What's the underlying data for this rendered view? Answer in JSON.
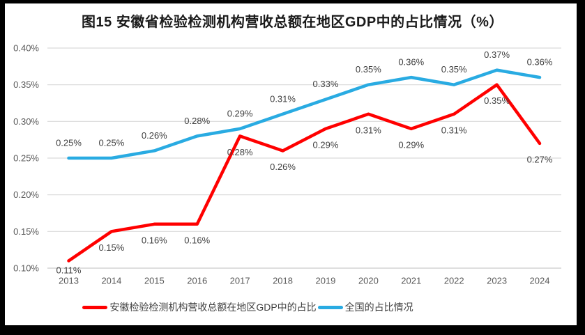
{
  "title": "图15 安徽省检验检测机构营收总额在地区GDP中的占比情况（%）",
  "colors": {
    "background": "#FFFFFF",
    "frame": "#000000",
    "grid": "#D9D9D9",
    "axis_line": "#C9C9C9",
    "axis_text": "#595959",
    "data_label_text": "#404040",
    "title_text": "#1A1A1A",
    "anhui_red": "#FF0000",
    "national_blue": "#29ABE2"
  },
  "chart_data": {
    "type": "line",
    "x": [
      "2013",
      "2014",
      "2015",
      "2016",
      "2017",
      "2018",
      "2019",
      "2020",
      "2021",
      "2022",
      "2023",
      "2024"
    ],
    "y_axis": {
      "ticks": [
        "0.40%",
        "0.35%",
        "0.30%",
        "0.25%",
        "0.20%",
        "0.15%",
        "0.10%"
      ],
      "min": 0.1,
      "max": 0.4,
      "unit": "%"
    },
    "grid": true,
    "legend_position": "bottom",
    "series": [
      {
        "key": "anhui",
        "name": "安徽检验检测机构营收总额在地区GDP中的占比",
        "color": "#FF0000",
        "values": [
          0.11,
          0.15,
          0.16,
          0.16,
          0.28,
          0.26,
          0.29,
          0.31,
          0.29,
          0.31,
          0.35,
          0.27
        ],
        "point_labels": [
          "0.11%",
          "0.15%",
          "0.16%",
          "0.16%",
          "0.28%",
          "0.26%",
          "0.29%",
          "0.31%",
          "0.29%",
          "0.31%",
          "0.35%",
          "0.27%"
        ],
        "label_placement": "below"
      },
      {
        "key": "national",
        "name": "全国的占比情况",
        "color": "#29ABE2",
        "values": [
          0.25,
          0.25,
          0.26,
          0.28,
          0.29,
          0.31,
          0.33,
          0.35,
          0.36,
          0.35,
          0.37,
          0.36
        ],
        "point_labels": [
          "0.25%",
          "0.25%",
          "0.26%",
          "0.28%",
          "0.29%",
          "0.31%",
          "0.33%",
          "0.35%",
          "0.36%",
          "0.35%",
          "0.37%",
          "0.36%"
        ],
        "label_placement": "above"
      }
    ]
  }
}
